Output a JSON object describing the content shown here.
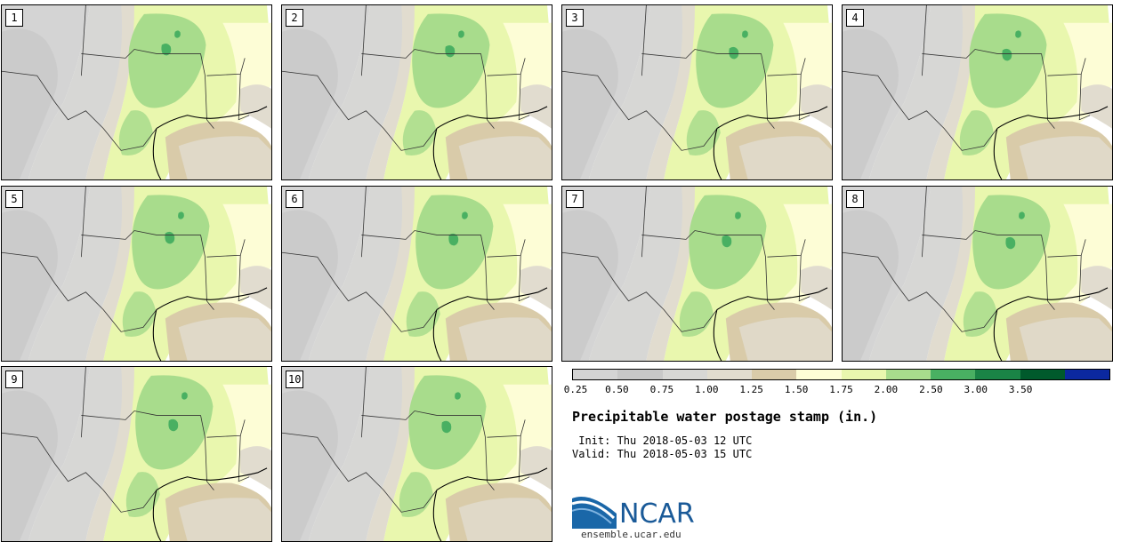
{
  "title": "Precipitable water postage stamp (in.)",
  "init": " Init: Thu 2018-05-03 12 UTC",
  "valid": "Valid: Thu 2018-05-03 15 UTC",
  "logo_text": "NCAR",
  "website": "ensemble.ucar.edu",
  "members": [
    "1",
    "2",
    "3",
    "4",
    "5",
    "6",
    "7",
    "8",
    "9",
    "10"
  ],
  "colorbar": {
    "colors": [
      "#d4d4d4",
      "#c8c8c8",
      "#d7d7d5",
      "#e1dccf",
      "#d9cba9",
      "#fdfdd6",
      "#e9f7ae",
      "#a8dc8c",
      "#49b062",
      "#1a8446",
      "#005a2c",
      "#0b28a0"
    ],
    "tick_labels": [
      "0.25",
      "0.50",
      "0.75",
      "1.00",
      "1.25",
      "1.50",
      "1.75",
      "2.00",
      "2.50",
      "3.00",
      "3.50"
    ]
  },
  "icons": [
    "ncar-swoosh-icon"
  ]
}
